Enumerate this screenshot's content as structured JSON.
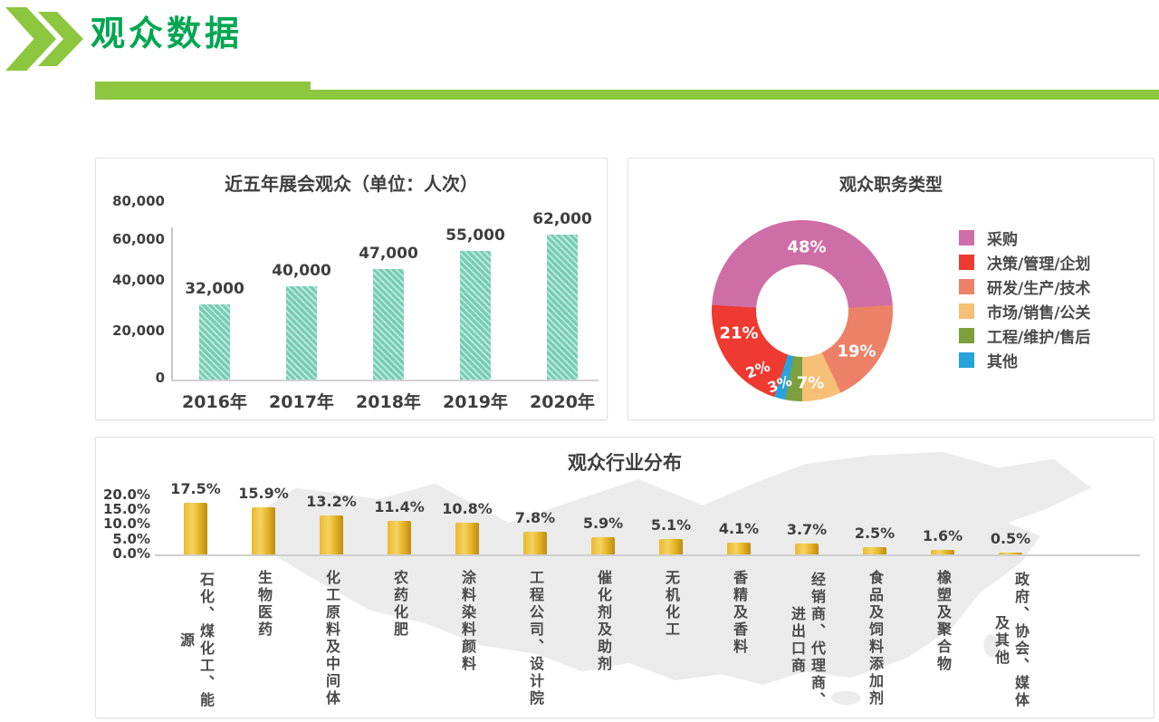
{
  "header": {
    "title": "观众数据",
    "accent_color": "#8dc63f",
    "title_color": "#00a651"
  },
  "chart_data": [
    {
      "id": "visitors",
      "type": "bar",
      "title": "近五年展会观众（单位：人次）",
      "categories": [
        "2016年",
        "2017年",
        "2018年",
        "2019年",
        "2020年"
      ],
      "values": [
        32000,
        40000,
        47000,
        55000,
        62000
      ],
      "value_labels": [
        "32,000",
        "40,000",
        "47,000",
        "55,000",
        "62,000"
      ],
      "y_ticks": [
        "80,000",
        "60,000",
        "40,000",
        "20,000",
        "0"
      ],
      "ylim": [
        0,
        80000
      ],
      "xlabel": "",
      "ylabel": "",
      "grid": false,
      "legend_position": "none",
      "bar_color": "#74ccb3",
      "bar_stripe_color": "#bce8db"
    },
    {
      "id": "jobs",
      "type": "pie",
      "title": "观众职务类型",
      "donut": true,
      "start_angle_deg": -86.4,
      "legend_position": "right",
      "legend": [
        {
          "label": "采购",
          "color": "#cf6da7"
        },
        {
          "label": "决策/管理/企划",
          "color": "#ee3a31"
        },
        {
          "label": "研发/生产/技术",
          "color": "#ec8168"
        },
        {
          "label": "市场/销售/公关",
          "color": "#f5bf75"
        },
        {
          "label": "工程/维护/售后",
          "color": "#7ca03e"
        },
        {
          "label": "其他",
          "color": "#27a2db"
        }
      ],
      "slices_clockwise_from_top": [
        {
          "label": "采购",
          "pct": 48,
          "pct_label": "48%",
          "color": "#cf6da7"
        },
        {
          "label": "研发/生产/技术",
          "pct": 19,
          "pct_label": "19%",
          "color": "#ec8168"
        },
        {
          "label": "市场/销售/公关",
          "pct": 7,
          "pct_label": "7%",
          "color": "#f5bf75"
        },
        {
          "label": "工程/维护/售后",
          "pct": 3,
          "pct_label": "3%",
          "color": "#7ca03e"
        },
        {
          "label": "其他",
          "pct": 2,
          "pct_label": "2%",
          "color": "#27a2db"
        },
        {
          "label": "决策/管理/企划",
          "pct": 21,
          "pct_label": "21%",
          "color": "#ee3a31"
        }
      ]
    },
    {
      "id": "industry",
      "type": "bar",
      "title": "观众行业分布",
      "categories": [
        "石化、煤化工、能源",
        "生物医药",
        "化工原料及中间体",
        "农药化肥",
        "涂料染料颜料",
        "工程公司、设计院",
        "催化剂及助剂",
        "无机化工",
        "香精及香料",
        "经销商、代理商、进出口商",
        "食品及饲料添加剂",
        "橡塑及聚合物",
        "政府、协会、媒体及其他"
      ],
      "values": [
        17.5,
        15.9,
        13.2,
        11.4,
        10.8,
        7.8,
        5.9,
        5.1,
        4.1,
        3.7,
        2.5,
        1.6,
        0.5
      ],
      "value_labels": [
        "17.5%",
        "15.9%",
        "13.2%",
        "11.4%",
        "10.8%",
        "7.8%",
        "5.9%",
        "5.1%",
        "4.1%",
        "3.7%",
        "2.5%",
        "1.6%",
        "0.5%"
      ],
      "y_ticks": [
        "20.0%",
        "15.0%",
        "10.0%",
        "5.0%",
        "0.0%"
      ],
      "ylim": [
        0,
        20
      ],
      "xlabel": "",
      "ylabel": "",
      "grid": false,
      "legend_position": "none",
      "bar_color": "#eab830",
      "background_decoration": "china-map"
    }
  ]
}
